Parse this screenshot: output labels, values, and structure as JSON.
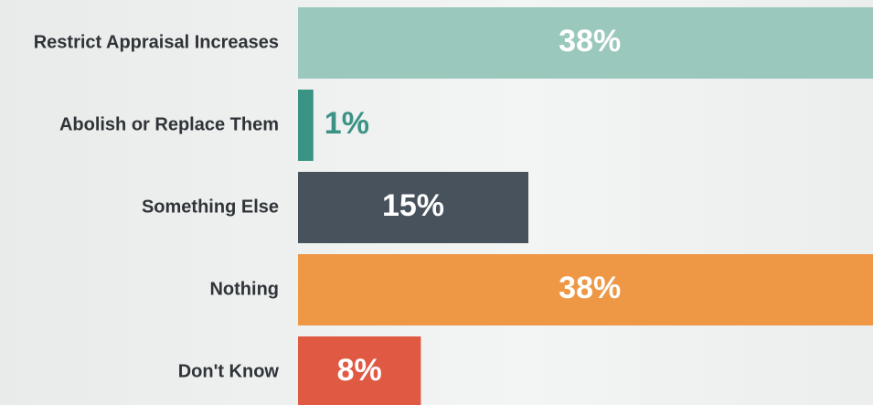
{
  "chart_data": {
    "type": "bar",
    "orientation": "horizontal",
    "categories": [
      "Restrict Appraisal Increases",
      "Abolish or Replace Them",
      "Something Else",
      "Nothing",
      "Don't Know"
    ],
    "values": [
      38,
      1,
      15,
      38,
      8
    ],
    "value_labels": [
      "38%",
      "1%",
      "15%",
      "38%",
      "8%"
    ],
    "colors": [
      "#9ac8bd",
      "#3a9384",
      "#48525c",
      "#ee9846",
      "#e05a43"
    ]
  }
}
